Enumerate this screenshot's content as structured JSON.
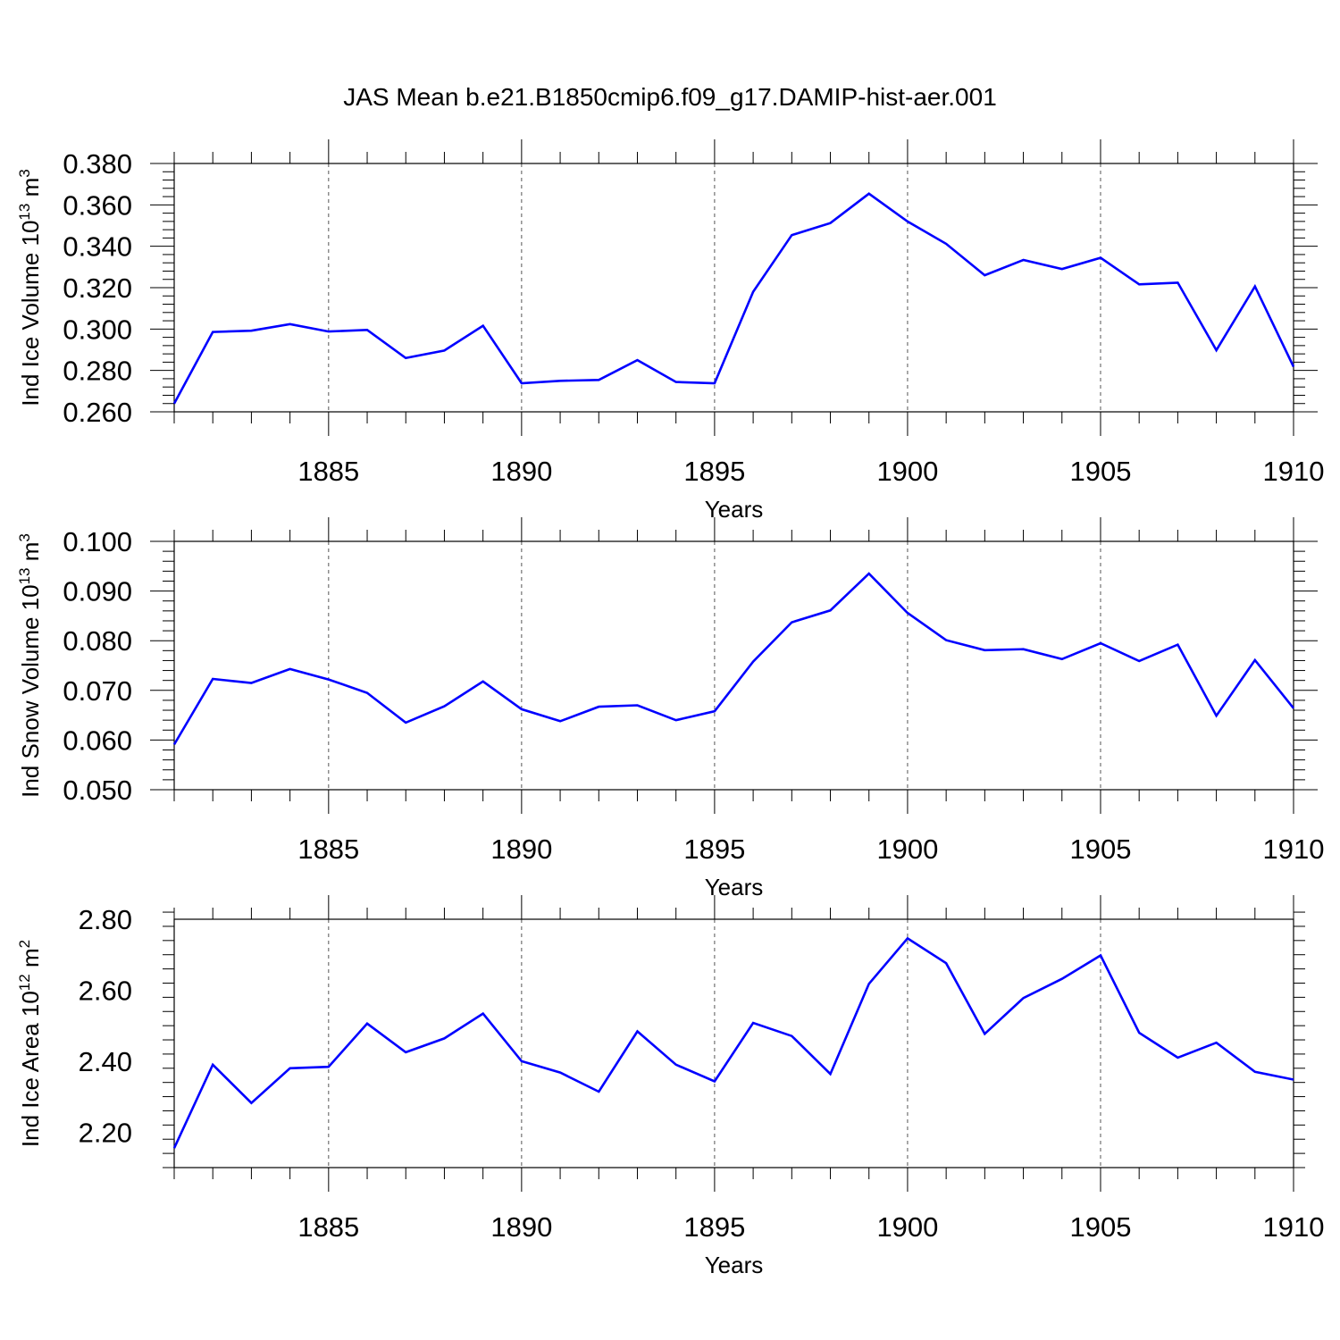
{
  "title": "JAS Mean b.e21.B1850cmip6.f09_g17.DAMIP-hist-aer.001",
  "chart_data": [
    {
      "type": "line",
      "title": "JAS Mean b.e21.B1850cmip6.f09_g17.DAMIP-hist-aer.001",
      "xlabel": "Years",
      "ylabel_main": "Ind Ice Volume 10",
      "ylabel_exp": "13",
      "ylabel_unit": "m",
      "ylabel_unit_exp": "3",
      "xlim": [
        1881,
        1910
      ],
      "ylim": [
        0.26,
        0.38
      ],
      "x_ticks": [
        1885,
        1890,
        1895,
        1900,
        1905,
        1910
      ],
      "x_tick_labels": [
        "1885",
        "1890",
        "1895",
        "1900",
        "1905",
        "1910"
      ],
      "y_ticks": [
        0.26,
        0.28,
        0.3,
        0.32,
        0.34,
        0.36,
        0.38
      ],
      "y_tick_labels": [
        "0.260",
        "0.280",
        "0.300",
        "0.320",
        "0.340",
        "0.360",
        "0.380"
      ],
      "grid": "vertical dashed lines at major x ticks",
      "line_color": "#0000ff",
      "x": [
        1881,
        1882,
        1883,
        1884,
        1885,
        1886,
        1887,
        1888,
        1889,
        1890,
        1891,
        1892,
        1893,
        1894,
        1895,
        1896,
        1897,
        1898,
        1899,
        1900,
        1901,
        1902,
        1903,
        1904,
        1905,
        1906,
        1907,
        1908,
        1909,
        1910
      ],
      "values": [
        0.264,
        0.2986,
        0.2992,
        0.3024,
        0.2988,
        0.2996,
        0.286,
        0.2896,
        0.3016,
        0.2738,
        0.275,
        0.2754,
        0.285,
        0.2744,
        0.2738,
        0.318,
        0.3454,
        0.3512,
        0.3654,
        0.352,
        0.3412,
        0.326,
        0.3334,
        0.329,
        0.3344,
        0.3216,
        0.3224,
        0.2898,
        0.3206,
        0.2818
      ]
    },
    {
      "type": "line",
      "xlabel": "Years",
      "ylabel_main": "Ind Snow Volume 10",
      "ylabel_exp": "13",
      "ylabel_unit": "m",
      "ylabel_unit_exp": "3",
      "xlim": [
        1881,
        1910
      ],
      "ylim": [
        0.05,
        0.1
      ],
      "x_ticks": [
        1885,
        1890,
        1895,
        1900,
        1905,
        1910
      ],
      "x_tick_labels": [
        "1885",
        "1890",
        "1895",
        "1900",
        "1905",
        "1910"
      ],
      "y_ticks": [
        0.05,
        0.06,
        0.07,
        0.08,
        0.09,
        0.1
      ],
      "y_tick_labels": [
        "0.050",
        "0.060",
        "0.070",
        "0.080",
        "0.090",
        "0.100"
      ],
      "grid": "vertical dashed lines at major x ticks",
      "line_color": "#0000ff",
      "x": [
        1881,
        1882,
        1883,
        1884,
        1885,
        1886,
        1887,
        1888,
        1889,
        1890,
        1891,
        1892,
        1893,
        1894,
        1895,
        1896,
        1897,
        1898,
        1899,
        1900,
        1901,
        1902,
        1903,
        1904,
        1905,
        1906,
        1907,
        1908,
        1909,
        1910
      ],
      "values": [
        0.0591,
        0.0723,
        0.0715,
        0.0743,
        0.0722,
        0.0695,
        0.0635,
        0.0668,
        0.0718,
        0.0662,
        0.0638,
        0.0667,
        0.067,
        0.064,
        0.0658,
        0.0758,
        0.0837,
        0.0861,
        0.0935,
        0.0856,
        0.0801,
        0.0781,
        0.0783,
        0.0763,
        0.0795,
        0.0759,
        0.0792,
        0.0649,
        0.0761,
        0.0664
      ]
    },
    {
      "type": "line",
      "xlabel": "Years",
      "ylabel_main": "Ind Ice Area 10",
      "ylabel_exp": "12",
      "ylabel_unit": "m",
      "ylabel_unit_exp": "2",
      "xlim": [
        1881,
        1910
      ],
      "ylim": [
        2.1,
        2.8
      ],
      "x_ticks": [
        1885,
        1890,
        1895,
        1900,
        1905,
        1910
      ],
      "x_tick_labels": [
        "1885",
        "1890",
        "1895",
        "1900",
        "1905",
        "1910"
      ],
      "y_ticks": [
        2.2,
        2.4,
        2.6,
        2.8
      ],
      "y_tick_labels": [
        "2.20",
        "2.40",
        "2.60",
        "2.80"
      ],
      "grid": "vertical dashed lines at major x ticks",
      "line_color": "#0000ff",
      "x": [
        1881,
        1882,
        1883,
        1884,
        1885,
        1886,
        1887,
        1888,
        1889,
        1890,
        1891,
        1892,
        1893,
        1894,
        1895,
        1896,
        1897,
        1898,
        1899,
        1900,
        1901,
        1902,
        1903,
        1904,
        1905,
        1906,
        1907,
        1908,
        1909,
        1910
      ],
      "values": [
        2.155,
        2.39,
        2.282,
        2.38,
        2.384,
        2.506,
        2.425,
        2.464,
        2.534,
        2.4,
        2.368,
        2.314,
        2.484,
        2.39,
        2.343,
        2.508,
        2.471,
        2.364,
        2.618,
        2.746,
        2.676,
        2.477,
        2.578,
        2.632,
        2.698,
        2.48,
        2.41,
        2.452,
        2.37,
        2.348
      ]
    }
  ]
}
